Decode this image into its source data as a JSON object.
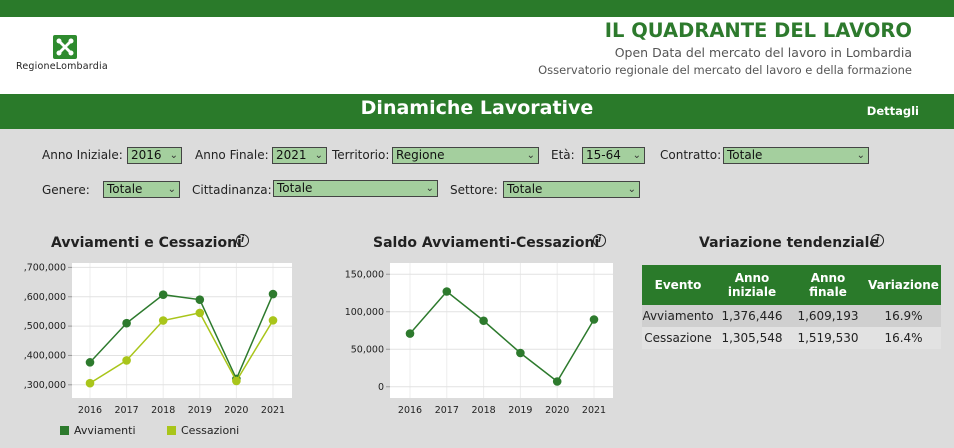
{
  "header": {
    "logo_text": "RegioneLombardia",
    "logo_icon": "lombardy-rose-icon",
    "title": "IL QUADRANTE DEL LAVORO",
    "subtitle1": "Open Data del mercato del lavoro in Lombardia",
    "subtitle2": "Osservatorio regionale del mercato del lavoro e della formazione"
  },
  "navbar": {
    "title": "Dinamiche Lavorative",
    "details_link": "Dettagli"
  },
  "filters": {
    "anno_iniziale": {
      "label": "Anno Iniziale:",
      "value": "2016"
    },
    "anno_finale": {
      "label": "Anno Finale:",
      "value": "2021"
    },
    "territorio": {
      "label": "Territorio:",
      "value": "Regione"
    },
    "eta": {
      "label": "Età:",
      "value": "15-64"
    },
    "contratto": {
      "label": "Contratto:",
      "value": "Totale"
    },
    "genere": {
      "label": "Genere:",
      "value": "Totale"
    },
    "cittadinanza": {
      "label": "Cittadinanza:",
      "value": "Totale"
    },
    "settore": {
      "label": "Settore:",
      "value": "Totale"
    }
  },
  "colors": {
    "primary_green": "#2a7a2a",
    "avviamenti": "#2d7a2d",
    "cessazioni": "#a9c51a",
    "select_bg": "#a4cf9e"
  },
  "sections": {
    "chart1_title": "Avviamenti e Cessazioni",
    "chart2_title": "Saldo Avviamenti-Cessazioni",
    "table_title": "Variazione tendenziale",
    "info_icon": "i"
  },
  "chart_data": [
    {
      "type": "line",
      "title": "Avviamenti e Cessazioni",
      "x": [
        "2016",
        "2017",
        "2018",
        "2019",
        "2020",
        "2021"
      ],
      "y_ticks": [
        1300000,
        1400000,
        1500000,
        1600000,
        1700000
      ],
      "y_tick_labels": [
        ",300,000",
        ",400,000",
        ",500,000",
        ",600,000",
        ",700,000"
      ],
      "ylim": [
        1255000,
        1715000
      ],
      "legend": "bottom",
      "grid": true,
      "series": [
        {
          "name": "Avviamenti",
          "color": "#2d7a2d",
          "values": [
            1376446,
            1510000,
            1607000,
            1590000,
            1320000,
            1609193
          ]
        },
        {
          "name": "Cessazioni",
          "color": "#a9c51a",
          "values": [
            1305548,
            1383000,
            1519000,
            1545000,
            1313000,
            1519530
          ]
        }
      ]
    },
    {
      "type": "line",
      "title": "Saldo Avviamenti-Cessazioni",
      "x": [
        "2016",
        "2017",
        "2018",
        "2019",
        "2020",
        "2021"
      ],
      "y_ticks": [
        0,
        50000,
        100000,
        150000
      ],
      "y_tick_labels": [
        "0",
        "50,000",
        "100,000",
        "150,000"
      ],
      "ylim": [
        -15000,
        165000
      ],
      "grid": true,
      "series": [
        {
          "color": "#2d7a2d",
          "values": [
            70898,
            127000,
            88000,
            45000,
            7000,
            89663
          ]
        }
      ]
    }
  ],
  "table": {
    "headers": [
      "Evento",
      "Anno iniziale",
      "Anno finale",
      "Variazione"
    ],
    "rows": [
      [
        "Avviamento",
        "1,376,446",
        "1,609,193",
        "16.9%"
      ],
      [
        "Cessazione",
        "1,305,548",
        "1,519,530",
        "16.4%"
      ]
    ]
  }
}
